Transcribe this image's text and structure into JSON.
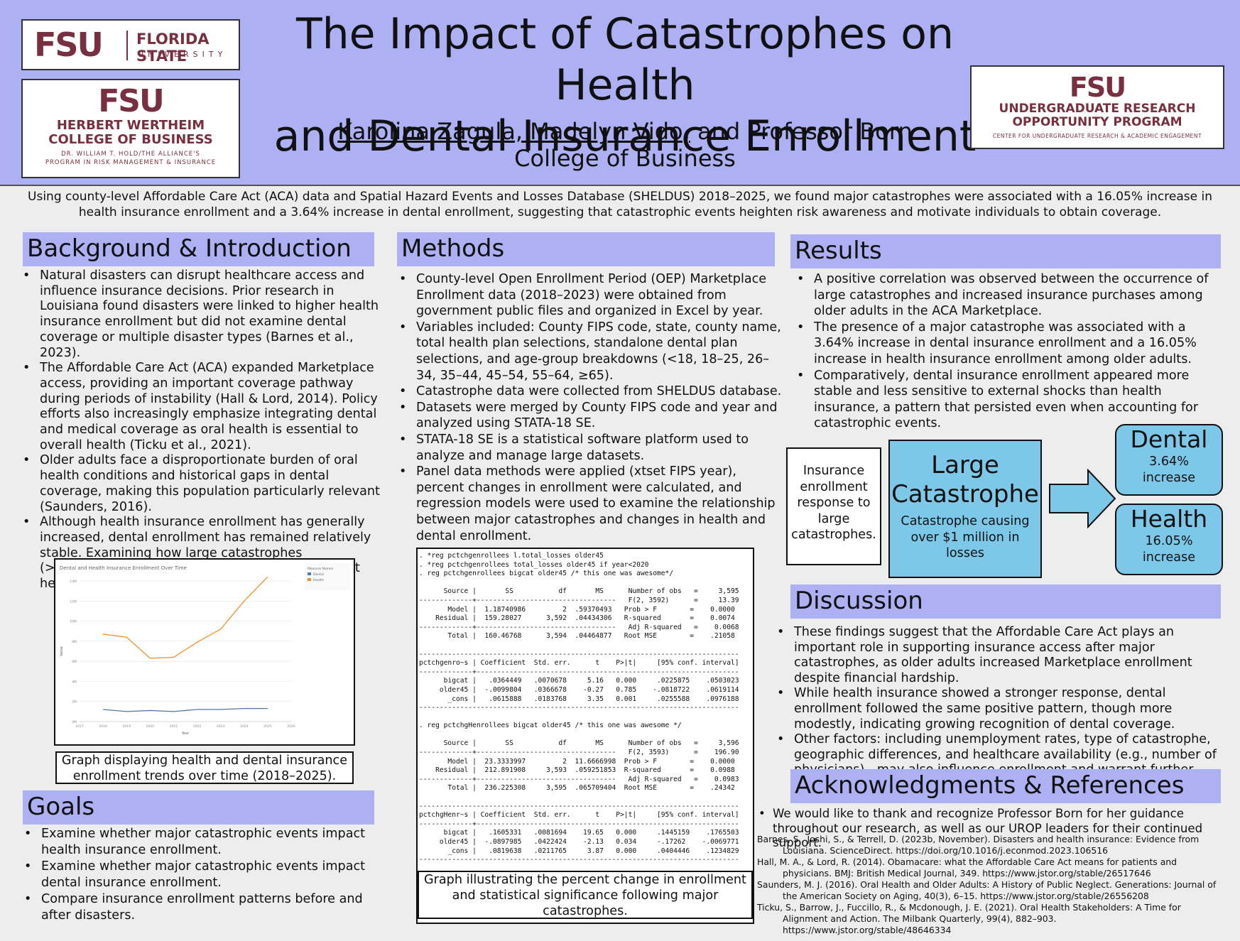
{
  "header": {
    "title_line1": "The Impact of Catastrophes on Health",
    "title_line2": "and Dental Insurance Enrollment",
    "authors_underlined": "Karolina Zagula, Madelyn Vido,",
    "authors_rest": " and Professor Born",
    "affiliation": "College of Business"
  },
  "logos": {
    "fsu_mark": "FSU",
    "fsu_name_line1": "FLORIDA STATE",
    "fsu_name_line2": "UNIVERSITY",
    "business_line1": "HERBERT WERTHEIM",
    "business_line2": "COLLEGE OF BUSINESS",
    "business_line3": "DR. WILLIAM T. HOLD/THE ALLIANCE'S",
    "business_line4": "PROGRAM IN RISK MANAGEMENT & INSURANCE",
    "urop_line1": "UNDERGRADUATE RESEARCH",
    "urop_line2": "OPPORTUNITY PROGRAM",
    "urop_line3": "CENTER FOR UNDERGRADUATE RESEARCH & ACADEMIC ENGAGEMENT",
    "brand_color": "#782f40"
  },
  "abstract": "Using county-level Affordable Care Act (ACA) data and Spatial Hazard Events and Losses Database (SHELDUS) 2018–2025, we found major catastrophes were associated with a 16.05% increase in health insurance enrollment and a 3.64% increase in dental enrollment, suggesting that catastrophic events heighten risk awareness and motivate individuals to obtain coverage.",
  "background": {
    "title": "Background & Introduction",
    "bullets": [
      "Natural disasters can disrupt healthcare access and influence insurance decisions. Prior research in Louisiana found disasters were linked to higher health insurance enrollment but did not examine dental coverage or multiple disaster types (Barnes et al., 2023).",
      "The Affordable Care Act (ACA) expanded Marketplace access, providing an important coverage pathway during periods of instability (Hall & Lord, 2014). Policy efforts also increasingly emphasize integrating dental and medical coverage as oral health is essential to overall health (Ticku et al., 2021).",
      "Older adults face a disproportionate burden of oral health conditions and historical gaps in dental coverage, making this population particularly relevant (Saunders, 2016).",
      "Although health insurance enrollment has generally increased, dental enrollment has remained relatively stable. Examining how large catastrophes (>$1,000,000 in county damage) affect enrollment helps assess access to care after disasters."
    ],
    "figure_caption": "Graph displaying health and dental insurance enrollment trends over time (2018–2025)."
  },
  "chart_data": {
    "type": "line",
    "title": "Dental and Health Insurance Enrollment Over Time",
    "xlabel": "Year",
    "ylabel": "Value",
    "legend_title": "Measure Names",
    "legend_placement": "top-right",
    "x": [
      2018,
      2019,
      2020,
      2021,
      2022,
      2023,
      2024,
      2025
    ],
    "x_ticks": [
      "2017",
      "2018",
      "2019",
      "2020",
      "2021",
      "2022",
      "2023",
      "2024",
      "2025",
      "2026"
    ],
    "xlim": [
      2017,
      2026
    ],
    "y_ticks": [
      "0M",
      "2M",
      "4M",
      "6M",
      "8M",
      "10M",
      "12M",
      "14M"
    ],
    "ylim": [
      0,
      14
    ],
    "series": [
      {
        "name": "Dental",
        "color": "#4e79a7",
        "values": [
          1.2,
          1.0,
          1.1,
          1.0,
          1.2,
          1.2,
          1.3,
          1.3
        ]
      },
      {
        "name": "Health",
        "color": "#f28e2b",
        "values": [
          8.7,
          8.4,
          6.3,
          6.4,
          7.9,
          9.2,
          12.0,
          14.4
        ]
      }
    ]
  },
  "goals": {
    "title": "Goals",
    "bullets": [
      "Examine whether major catastrophic events impact health insurance enrollment.",
      "Examine whether major catastrophic events impact dental insurance enrollment.",
      "Compare insurance enrollment patterns before and after disasters."
    ]
  },
  "methods": {
    "title": "Methods",
    "bullets": [
      "County-level Open Enrollment Period (OEP) Marketplace Enrollment data (2018–2023) were obtained from government public files and organized in Excel by year.",
      "Variables included: County FIPS code, state, county name, total health plan selections, standalone dental plan selections, and age-group breakdowns (<18, 18–25, 26–34, 35–44, 45–54, 55–64, ≥65).",
      "Catastrophe data were collected from SHELDUS database.",
      "Datasets were merged by County FIPS code and year and analyzed using STATA-18 SE.",
      "STATA-18 SE is a statistical software platform used to analyze and manage large datasets.",
      "Panel data methods were applied (xtset FIPS year), percent changes in enrollment were calculated, and regression models were used to examine the relationship between major catastrophes and changes in health and dental enrollment."
    ],
    "stata_output": ". *reg pctchgenrollees l.total_losses older45\n. *reg pctchgenrollees total_losses older45 if year<2020\n. reg pctchgenrollees bigcat older45 /* this one was awesome*/\n\n      Source |       SS           df       MS      Number of obs   =     3,595\n-------------+----------------------------------   F(2, 3592)      =     13.39\n       Model |  1.18740986         2  .59370493   Prob > F        =    0.0000\n    Residual |  159.28027      3,592  .04434306   R-squared       =    0.0074\n-------------+----------------------------------   Adj R-squared   =    0.0068\n       Total |  160.46768      3,594  .04464877   Root MSE        =    .21058\n\n------------------------------------------------------------------------------\npctchgenro~s | Coefficient  Std. err.      t    P>|t|     [95% conf. interval]\n-------------+----------------------------------------------------------------\n      bigcat |   .0364449   .0070678     5.16   0.000     .0225875    .0503023\n     older45 |  -.0099804   .0366678    -0.27   0.785    -.0818722    .0619114\n       _cons |   .0615888   .0183768     3.35   0.001     .0255588    .0976188\n------------------------------------------------------------------------------\n\n. reg pctchgHenrollees bigcat older45 /* this one was awesome */\n\n      Source |       SS           df       MS      Number of obs   =     3,596\n-------------+----------------------------------   F(2, 3593)      =    196.90\n       Model |  23.3333997         2  11.6666998  Prob > F        =    0.0000\n    Residual |  212.891908     3,593  .059251853  R-squared       =    0.0988\n-------------+----------------------------------   Adj R-squared   =    0.0983\n       Total |  236.225308     3,595  .065709404  Root MSE        =    .24342\n\n------------------------------------------------------------------------------\npctchgHenr~s | Coefficient  Std. err.      t    P>|t|     [95% conf. interval]\n-------------+----------------------------------------------------------------\n      bigcat |   .1605331   .0081694    19.65   0.000     .1445159    .1765503\n     older45 |  -.0897985   .0422424    -2.13   0.034     -.17262    -.0069771\n       _cons |   .0819638   .0211765     3.87   0.000     .0404446    .1234829\n------------------------------------------------------------------------------",
    "figure_caption": "Graph illustrating the percent change in enrollment and statistical significance following major catastrophes."
  },
  "results": {
    "title": "Results",
    "bullets": [
      "A positive correlation was observed between the occurrence of large catastrophes and increased insurance purchases among older adults in the ACA Marketplace.",
      "The presence of a major catastrophe was associated with a 3.64% increase in dental insurance enrollment and a 16.05% increase in health insurance enrollment among older adults.",
      "Comparatively, dental insurance enrollment appeared more stable and less sensitive to external shocks than health insurance, a pattern that persisted even when accounting for catastrophic events."
    ],
    "diagram": {
      "intro_box": "Insurance enrollment response to large catastrophes.",
      "center_title": "Large Catastrophe",
      "center_desc": "Catastrophe causing over $1 million in losses",
      "dental_title": "Dental",
      "dental_value": "3.64% increase",
      "health_title": "Health",
      "health_value": "16.05% increase",
      "box_color": "#7dc8e8"
    }
  },
  "discussion": {
    "title": "Discussion",
    "bullets": [
      "These findings suggest that the Affordable Care Act plays an important role in supporting insurance access after major catastrophes, as older adults increased Marketplace enrollment despite financial hardship.",
      "While health insurance showed a stronger response, dental enrollment followed the same positive pattern, though more modestly, indicating growing recognition of dental coverage.",
      "Other factors: including unemployment rates, type of catastrophe, geographic differences, and healthcare availability (e.g., number of physicians)—may also influence enrollment and warrant further study."
    ]
  },
  "acknowledgments": {
    "title": "Acknowledgments & References",
    "thanks": "We would like to thank and recognize Professor Born for her guidance throughout our research, as well as our UROP leaders for their continued support.",
    "references": [
      "Barnes, S., Joshi, S., & Terrell, D. (2023b, November). Disasters and health insurance: Evidence from Louisiana. ScienceDirect. https://doi.org/10.1016/j.econmod.2023.106516",
      "Hall, M. A., & Lord, R. (2014). Obamacare: what the Affordable Care Act means for patients and physicians. BMJ: British Medical Journal, 349. https://www.jstor.org/stable/26517646",
      "Saunders, M. J. (2016). Oral Health and Older Adults: A History of Public Neglect. Generations: Journal of the American Society on Aging, 40(3), 6–15. https://www.jstor.org/stable/26556208",
      "Ticku, S., Barrow, J., Fuccillo, R., & Mcdonough, J. E. (2021). Oral Health Stakeholders: A Time for Alignment and Action. The Milbank Quarterly, 99(4), 882–903. https://www.jstor.org/stable/48646334"
    ]
  }
}
